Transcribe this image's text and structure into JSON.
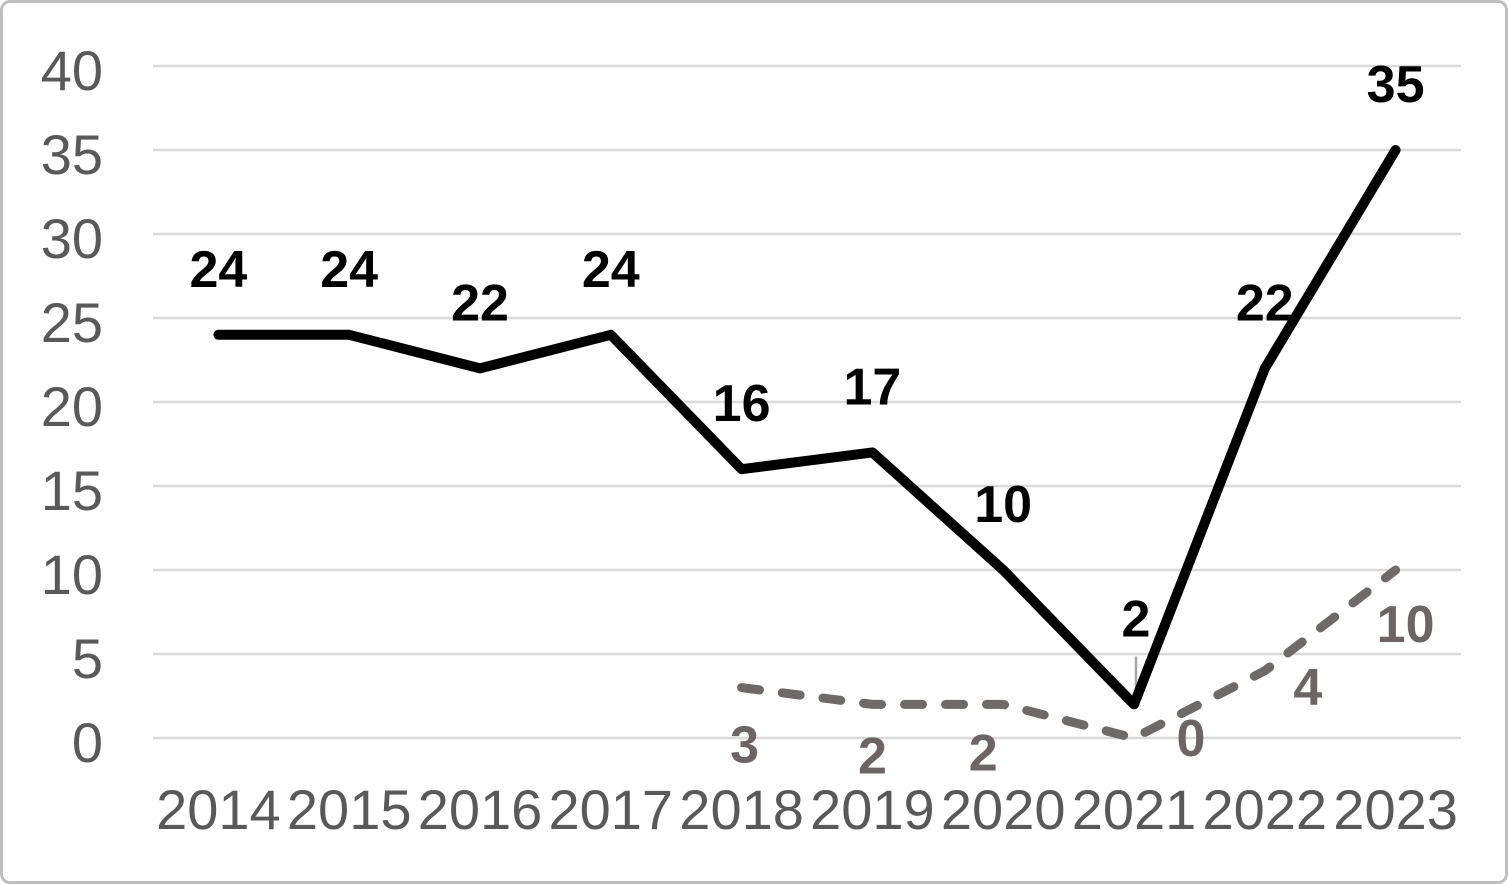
{
  "chart_data": {
    "type": "line",
    "title": "",
    "xlabel": "",
    "ylabel": "",
    "categories": [
      "2014",
      "2015",
      "2016",
      "2017",
      "2018",
      "2019",
      "2020",
      "2021",
      "2022",
      "2023"
    ],
    "series": [
      {
        "name": "solid-black-series",
        "values": [
          24,
          24,
          22,
          24,
          16,
          17,
          10,
          2,
          22,
          35
        ],
        "data_labels": [
          24,
          24,
          22,
          24,
          16,
          17,
          10,
          2,
          22,
          35
        ],
        "color": "#000000",
        "label_color": "#000000",
        "line_style": "solid",
        "labels_position": "above"
      },
      {
        "name": "dashed-gray-series",
        "values": [
          null,
          null,
          null,
          null,
          3,
          2,
          2,
          0,
          4,
          10
        ],
        "data_labels": [
          null,
          null,
          null,
          null,
          3,
          2,
          2,
          0,
          4,
          10
        ],
        "color": "#6f6a6a",
        "label_color": "#6b6565",
        "line_style": "dashed",
        "labels_position": "below"
      }
    ],
    "ylim": [
      0,
      40
    ],
    "yticks": [
      0,
      5,
      10,
      15,
      20,
      25,
      30,
      35,
      40
    ],
    "grid": "horizontal",
    "legend": "none",
    "leader_line": {
      "category": "2021",
      "series": "solid-black-series"
    },
    "colors": {
      "gridline": "#d9d9d9",
      "axis_text": "#595959",
      "leader_line": "#a6a6a6",
      "frame_border": "#bfbfbf",
      "background": "#ffffff"
    }
  }
}
